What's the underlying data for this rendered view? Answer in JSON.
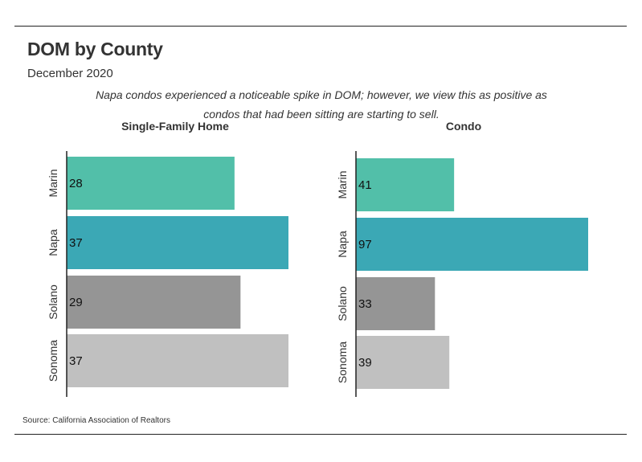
{
  "header": {
    "title": "DOM by County",
    "subtitle": "December 2020",
    "note": "Napa condos experienced a noticeable spike in DOM; however, we view this as positive as condos that had been sitting are starting to sell."
  },
  "footer": {
    "source": "Source:  California Association of Realtors"
  },
  "colors": {
    "Marin": "#52bfa9",
    "Napa": "#3ba8b5",
    "Solano": "#959595",
    "Sonoma": "#c0c0c0"
  },
  "chart_data": [
    {
      "type": "bar",
      "orientation": "horizontal",
      "title": "Single-Family Home",
      "categories": [
        "Marin",
        "Napa",
        "Solano",
        "Sonoma"
      ],
      "values": [
        28,
        37,
        29,
        37
      ],
      "xlim": [
        0,
        37
      ]
    },
    {
      "type": "bar",
      "orientation": "horizontal",
      "title": "Condo",
      "categories": [
        "Marin",
        "Napa",
        "Solano",
        "Sonoma"
      ],
      "values": [
        41,
        97,
        33,
        39
      ],
      "xlim": [
        0,
        97
      ]
    }
  ]
}
